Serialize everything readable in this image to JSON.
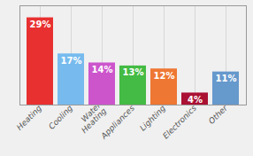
{
  "chart_data": {
    "type": "bar",
    "categories": [
      "Heating",
      "Cooling",
      "Water\nHeating",
      "Appliances",
      "Lighting",
      "Electronics",
      "Other"
    ],
    "values": [
      29,
      17,
      14,
      13,
      12,
      4,
      11
    ],
    "value_labels": [
      "29%",
      "17%",
      "14%",
      "13%",
      "12%",
      "4%",
      "11%"
    ],
    "colors": [
      "#e83030",
      "#77bbee",
      "#cc55cc",
      "#44bb44",
      "#ee7733",
      "#aa1133",
      "#6699cc"
    ],
    "ylim": [
      0,
      33
    ],
    "grid": true,
    "data_labels": true,
    "tick_labels": "x"
  }
}
